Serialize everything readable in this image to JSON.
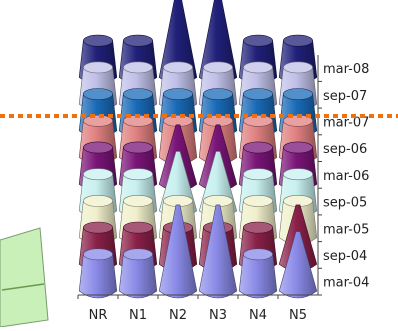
{
  "chart_data": {
    "type": "3d-cone-column",
    "categories": [
      "NR",
      "N1",
      "N2",
      "N3",
      "N4",
      "N5"
    ],
    "series_labels": [
      "mar-04",
      "sep-04",
      "mar-05",
      "sep-05",
      "mar-06",
      "sep-06",
      "mar-07",
      "sep-07",
      "mar-08"
    ],
    "layers": [
      {
        "name": "mar-04",
        "color": "#8a8ae8",
        "values": [
          1,
          1,
          3,
          3,
          1,
          2
        ]
      },
      {
        "name": "sep-04",
        "color": "#8a2048",
        "values": [
          1,
          1,
          1,
          1,
          1,
          2
        ]
      },
      {
        "name": "mar-05",
        "color": "#f0f0cc",
        "values": [
          1,
          1,
          1,
          1,
          1,
          1
        ]
      },
      {
        "name": "sep-05",
        "color": "#c8f0f0",
        "values": [
          1,
          1,
          2,
          2,
          1,
          1
        ]
      },
      {
        "name": "mar-06",
        "color": "#7a1478",
        "values": [
          1,
          1,
          2,
          2,
          1,
          1
        ]
      },
      {
        "name": "sep-06",
        "color": "#e08080",
        "values": [
          1,
          1,
          1,
          1,
          1,
          1
        ]
      },
      {
        "name": "mar-07",
        "color": "#1a6ab8",
        "values": [
          1,
          1,
          1,
          1,
          1,
          1
        ]
      },
      {
        "name": "sep-07",
        "color": "#c0c0e8",
        "values": [
          1,
          1,
          1,
          1,
          1,
          1
        ]
      },
      {
        "name": "mar-08",
        "color": "#20207a",
        "values": [
          1,
          1,
          3,
          3,
          1,
          1
        ]
      }
    ],
    "dotted_line_color": "#f07010",
    "walls_color": "#a8a8a8",
    "floor_left_color": "#c8f0b8",
    "xlabel": "",
    "ylabel": "",
    "title": ""
  }
}
